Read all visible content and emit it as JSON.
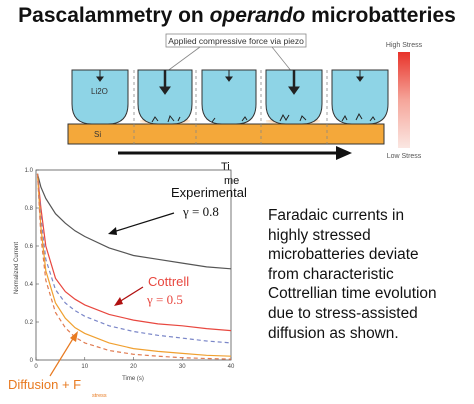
{
  "title": {
    "part1": "Pascalammetry on ",
    "part2": "operando",
    "part3": " microbatteries"
  },
  "schematic": {
    "callout": "Applied compressive force via piezo",
    "electrolyte_label": "Li2O",
    "substrate_label": "Si",
    "time_label_line1": "Ti",
    "time_label_line2": "me",
    "scale_high": "High Stress",
    "scale_low": "Low Stress"
  },
  "annotations": {
    "experimental": "Experimental",
    "experimental_gamma": "γ = 0.8",
    "cottrell": "Cottrell",
    "cottrell_gamma": "γ = 0.5",
    "diffusion": "Diffusion + F",
    "diffusion_sub": "stress"
  },
  "description": [
    "Faradaic currents in",
    "highly stressed",
    "microbatteries deviate",
    "from characteristic",
    "Cottrellian time evolution",
    "due to stress-assisted",
    "diffusion as shown."
  ],
  "chart_data": {
    "type": "line",
    "xlabel": "Time (s)",
    "ylabel": "Normalized Current",
    "xlim": [
      0,
      40
    ],
    "ylim": [
      0,
      1.0
    ],
    "x_ticks": [
      0,
      10,
      20,
      30,
      40
    ],
    "y_ticks": [
      0,
      0.2,
      0.4,
      0.6,
      0.8,
      1.0
    ],
    "y_tick_labels": [
      "0",
      "0.2",
      "0.4",
      "0.6",
      "0.8",
      "1.0"
    ],
    "grid": false,
    "series": [
      {
        "name": "Experimental",
        "color": "#555555",
        "style": "solid",
        "values_x": [
          0.3,
          1,
          2,
          4,
          6,
          8,
          10,
          15,
          20,
          25,
          30,
          35,
          40
        ],
        "values_y": [
          0.98,
          0.91,
          0.85,
          0.77,
          0.72,
          0.68,
          0.65,
          0.59,
          0.55,
          0.53,
          0.51,
          0.49,
          0.48
        ]
      },
      {
        "name": "Cottrell",
        "color": "#e8473f",
        "style": "solid",
        "values_x": [
          0.3,
          1,
          2,
          4,
          6,
          8,
          10,
          15,
          20,
          25,
          30,
          35,
          40
        ],
        "values_y": [
          0.98,
          0.8,
          0.6,
          0.43,
          0.36,
          0.32,
          0.29,
          0.24,
          0.21,
          0.19,
          0.18,
          0.165,
          0.155
        ]
      },
      {
        "name": "",
        "color": "#7a86c8",
        "style": "dashed",
        "values_x": [
          0.3,
          1,
          2,
          4,
          6,
          8,
          10,
          15,
          20,
          25,
          30,
          35,
          40
        ],
        "values_y": [
          0.98,
          0.75,
          0.53,
          0.37,
          0.3,
          0.26,
          0.23,
          0.18,
          0.15,
          0.13,
          0.115,
          0.1,
          0.09
        ]
      },
      {
        "name": "",
        "color": "#f0a030",
        "style": "solid",
        "values_x": [
          0.3,
          1,
          2,
          4,
          6,
          8,
          10,
          15,
          20,
          25,
          30,
          35,
          40
        ],
        "values_y": [
          0.98,
          0.7,
          0.47,
          0.3,
          0.22,
          0.17,
          0.14,
          0.09,
          0.06,
          0.045,
          0.035,
          0.025,
          0.02
        ]
      },
      {
        "name": "",
        "color": "#e07a50",
        "style": "dashed",
        "values_x": [
          0.3,
          1,
          2,
          4,
          6,
          8,
          10,
          15,
          20,
          25,
          30,
          35,
          40
        ],
        "values_y": [
          0.98,
          0.65,
          0.42,
          0.25,
          0.17,
          0.12,
          0.09,
          0.05,
          0.03,
          0.02,
          0.012,
          0.008,
          0.005
        ]
      }
    ]
  }
}
